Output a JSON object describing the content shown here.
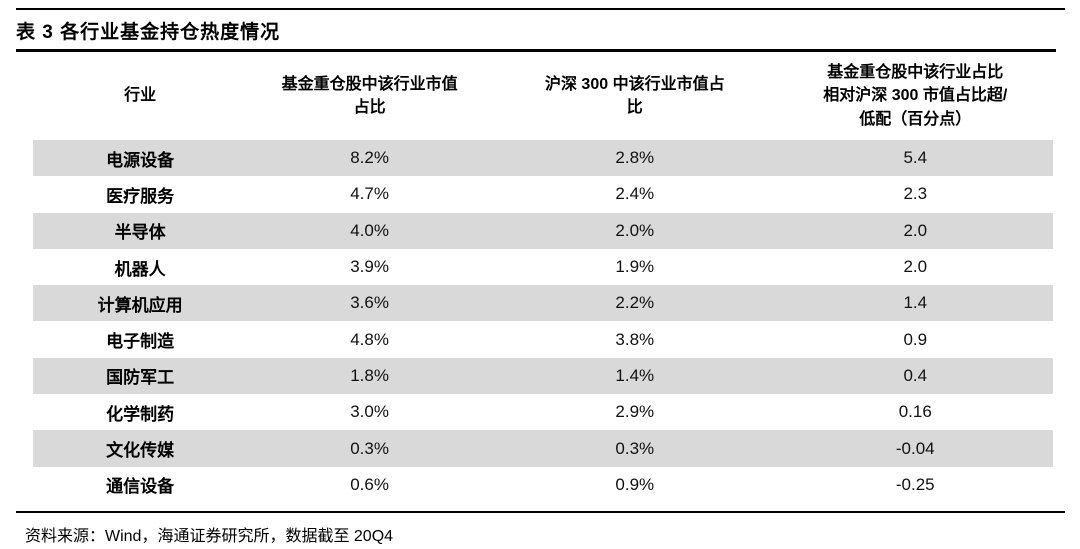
{
  "title": "表 3 各行业基金持仓热度情况",
  "table": {
    "columns": [
      {
        "label": "行业"
      },
      {
        "label": "基金重仓股中该行业市值\n占比"
      },
      {
        "label": "沪深 300 中该行业市值占\n比"
      },
      {
        "label": "基金重仓股中该行业占比\n相对沪深 300 市值占比超/\n低配（百分点）"
      }
    ],
    "rows": [
      {
        "industry": "电源设备",
        "fund_weight": "8.2%",
        "csi300_weight": "2.8%",
        "over_under": "5.4"
      },
      {
        "industry": "医疗服务",
        "fund_weight": "4.7%",
        "csi300_weight": "2.4%",
        "over_under": "2.3"
      },
      {
        "industry": "半导体",
        "fund_weight": "4.0%",
        "csi300_weight": "2.0%",
        "over_under": "2.0"
      },
      {
        "industry": "机器人",
        "fund_weight": "3.9%",
        "csi300_weight": "1.9%",
        "over_under": "2.0"
      },
      {
        "industry": "计算机应用",
        "fund_weight": "3.6%",
        "csi300_weight": "2.2%",
        "over_under": "1.4"
      },
      {
        "industry": "电子制造",
        "fund_weight": "4.8%",
        "csi300_weight": "3.8%",
        "over_under": "0.9"
      },
      {
        "industry": "国防军工",
        "fund_weight": "1.8%",
        "csi300_weight": "1.4%",
        "over_under": "0.4"
      },
      {
        "industry": "化学制药",
        "fund_weight": "3.0%",
        "csi300_weight": "2.9%",
        "over_under": "0.16"
      },
      {
        "industry": "文化传媒",
        "fund_weight": "0.3%",
        "csi300_weight": "0.3%",
        "over_under": "-0.04"
      },
      {
        "industry": "通信设备",
        "fund_weight": "0.6%",
        "csi300_weight": "0.9%",
        "over_under": "-0.25"
      }
    ]
  },
  "footer": {
    "source": "资料来源：Wind，海通证券研究所，数据截至 20Q4"
  },
  "colors": {
    "row_shade": "#d9d9d9",
    "rule": "#000000",
    "text": "#000000"
  },
  "chart_data": {
    "type": "table",
    "title": "表 3 各行业基金持仓热度情况",
    "columns": [
      "行业",
      "基金重仓股中该行业市值占比",
      "沪深 300 中该行业市值占比",
      "基金重仓股中该行业占比相对沪深 300 市值占比超/低配（百分点）"
    ],
    "rows": [
      [
        "电源设备",
        "8.2%",
        "2.8%",
        5.4
      ],
      [
        "医疗服务",
        "4.7%",
        "2.4%",
        2.3
      ],
      [
        "半导体",
        "4.0%",
        "2.0%",
        2.0
      ],
      [
        "机器人",
        "3.9%",
        "1.9%",
        2.0
      ],
      [
        "计算机应用",
        "3.6%",
        "2.2%",
        1.4
      ],
      [
        "电子制造",
        "4.8%",
        "3.8%",
        0.9
      ],
      [
        "国防军工",
        "1.8%",
        "1.4%",
        0.4
      ],
      [
        "化学制药",
        "3.0%",
        "2.9%",
        0.16
      ],
      [
        "文化传媒",
        "0.3%",
        "0.3%",
        -0.04
      ],
      [
        "通信设备",
        "0.6%",
        "0.9%",
        -0.25
      ]
    ],
    "source": "资料来源：Wind，海通证券研究所，数据截至 20Q4"
  }
}
